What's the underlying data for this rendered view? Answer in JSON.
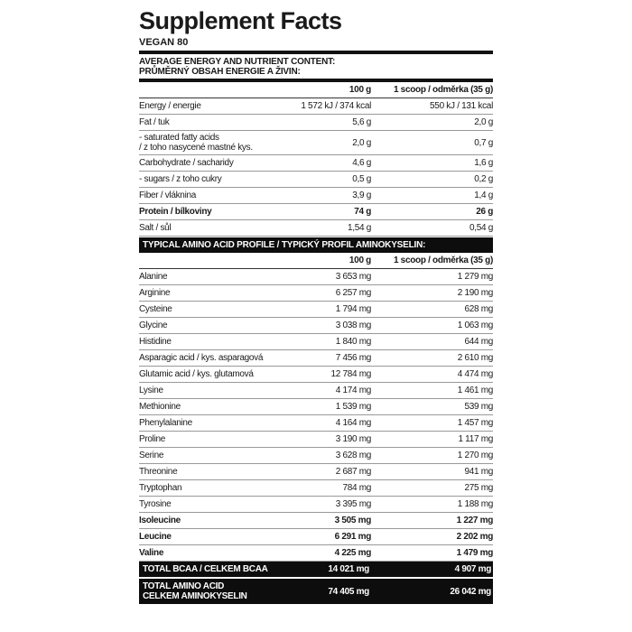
{
  "title": "Supplement Facts",
  "product": "VEGAN 80",
  "nutrients": {
    "heading_line1": "AVERAGE ENERGY AND NUTRIENT CONTENT:",
    "heading_line2": "PRŮMĚRNÝ OBSAH ENERGIE A ŽIVIN:",
    "col1": "100 g",
    "col2": "1 scoop / odměrka (35 g)",
    "rows": [
      {
        "name": "Energy / energie",
        "per100": "1 572 kJ / 374 kcal",
        "perScoop": "550 kJ / 131 kcal"
      },
      {
        "name": "Fat / tuk",
        "per100": "5,6 g",
        "perScoop": "2,0 g"
      },
      {
        "name": "- saturated fatty acids",
        "name2": "/ z toho nasycené mastné kys.",
        "per100": "2,0 g",
        "perScoop": "0,7 g"
      },
      {
        "name": "Carbohydrate / sacharidy",
        "per100": "4,6 g",
        "perScoop": "1,6 g"
      },
      {
        "name": "- sugars / z toho cukry",
        "per100": "0,5 g",
        "perScoop": "0,2 g"
      },
      {
        "name": "Fiber / vláknina",
        "per100": "3,9 g",
        "perScoop": "1,4 g"
      },
      {
        "name": "Protein / bílkoviny",
        "per100": "74 g",
        "perScoop": "26 g"
      },
      {
        "name": "Salt / sůl",
        "per100": "1,54 g",
        "perScoop": "0,54 g"
      }
    ]
  },
  "amino": {
    "heading": "TYPICAL AMINO ACID PROFILE / TYPICKÝ PROFIL AMINOKYSELIN:",
    "col1": "100 g",
    "col2": "1 scoop / odměrka (35 g)",
    "rows": [
      {
        "name": "Alanine",
        "per100": "3 653 mg",
        "perScoop": "1 279 mg"
      },
      {
        "name": "Arginine",
        "per100": "6 257 mg",
        "perScoop": "2 190 mg"
      },
      {
        "name": "Cysteine",
        "per100": "1 794 mg",
        "perScoop": "628 mg"
      },
      {
        "name": "Glycine",
        "per100": "3 038 mg",
        "perScoop": "1 063 mg"
      },
      {
        "name": "Histidine",
        "per100": "1 840 mg",
        "perScoop": "644 mg"
      },
      {
        "name": "Asparagic acid / kys. asparagová",
        "per100": "7 456 mg",
        "perScoop": "2 610 mg"
      },
      {
        "name": "Glutamic acid / kys. glutamová",
        "per100": "12 784 mg",
        "perScoop": "4 474 mg"
      },
      {
        "name": "Lysine",
        "per100": "4 174 mg",
        "perScoop": "1 461 mg"
      },
      {
        "name": "Methionine",
        "per100": "1 539 mg",
        "perScoop": "539 mg"
      },
      {
        "name": "Phenylalanine",
        "per100": "4 164 mg",
        "perScoop": "1 457 mg"
      },
      {
        "name": "Proline",
        "per100": "3 190 mg",
        "perScoop": "1 117 mg"
      },
      {
        "name": "Serine",
        "per100": "3 628 mg",
        "perScoop": "1 270 mg"
      },
      {
        "name": "Threonine",
        "per100": "2 687 mg",
        "perScoop": "941 mg"
      },
      {
        "name": "Tryptophan",
        "per100": "784 mg",
        "perScoop": "275 mg"
      },
      {
        "name": "Tyrosine",
        "per100": "3 395 mg",
        "perScoop": "1 188 mg"
      },
      {
        "name": "Isoleucine",
        "per100": "3 505 mg",
        "perScoop": "1 227 mg"
      },
      {
        "name": "Leucine",
        "per100": "6 291 mg",
        "perScoop": "2 202 mg"
      },
      {
        "name": "Valine",
        "per100": "4 225 mg",
        "perScoop": "1 479 mg"
      }
    ],
    "total_bcaa": {
      "name": "TOTAL BCAA / CELKEM BCAA",
      "per100": "14 021 mg",
      "perScoop": "4 907 mg"
    },
    "total_amino": {
      "name": "TOTAL AMINO ACID",
      "name2": "CELKEM AMINOKYSELIN",
      "per100": "74 405 mg",
      "perScoop": "26 042 mg"
    }
  }
}
